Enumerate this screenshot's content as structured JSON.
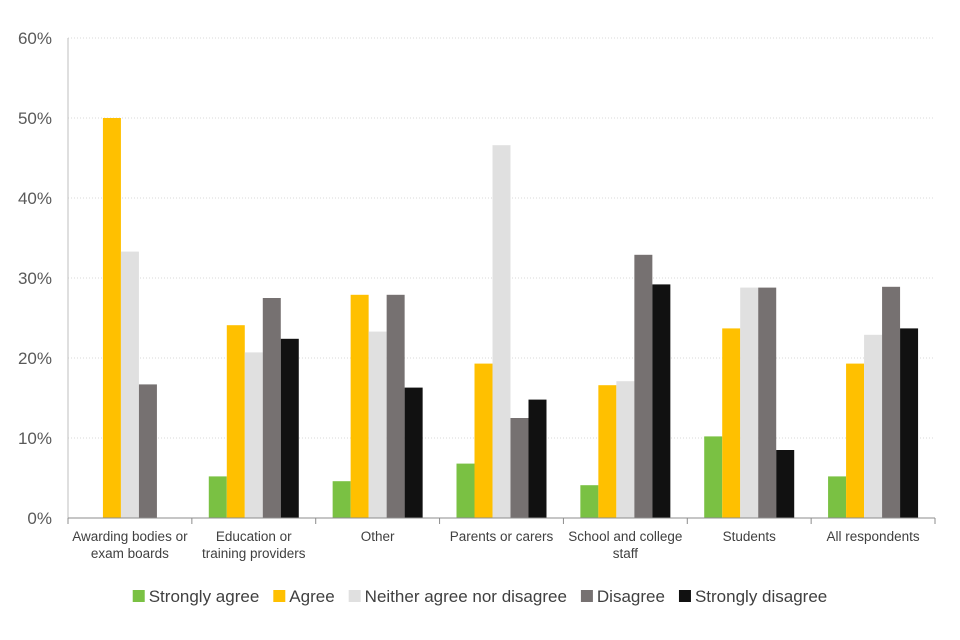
{
  "chart_data": {
    "type": "bar",
    "categories": [
      [
        "Awarding bodies or",
        "exam boards"
      ],
      [
        "Education or",
        "training providers"
      ],
      [
        "Other"
      ],
      [
        "Parents or carers"
      ],
      [
        "School and college",
        "staff"
      ],
      [
        "Students"
      ],
      [
        "All respondents"
      ]
    ],
    "series": [
      {
        "name": "Strongly agree",
        "color": "#7AC143",
        "values": [
          0,
          5.2,
          4.6,
          6.8,
          4.1,
          10.2,
          5.2
        ]
      },
      {
        "name": "Agree",
        "color": "#FFC000",
        "values": [
          50.0,
          24.1,
          27.9,
          19.3,
          16.6,
          23.7,
          19.3
        ]
      },
      {
        "name": "Neither agree nor disagree",
        "color": "#E0E0E0",
        "values": [
          33.3,
          20.7,
          23.3,
          46.6,
          17.1,
          28.8,
          22.9
        ]
      },
      {
        "name": "Disagree",
        "color": "#767171",
        "values": [
          16.7,
          27.5,
          27.9,
          12.5,
          32.9,
          28.8,
          28.9
        ]
      },
      {
        "name": "Strongly disagree",
        "color": "#111111",
        "values": [
          0,
          22.4,
          16.3,
          14.8,
          29.2,
          8.5,
          23.7
        ]
      }
    ],
    "y_ticks": [
      "0%",
      "10%",
      "20%",
      "30%",
      "40%",
      "50%",
      "60%"
    ],
    "ylim": [
      0,
      60
    ],
    "grid": true,
    "legend_position": "bottom"
  }
}
